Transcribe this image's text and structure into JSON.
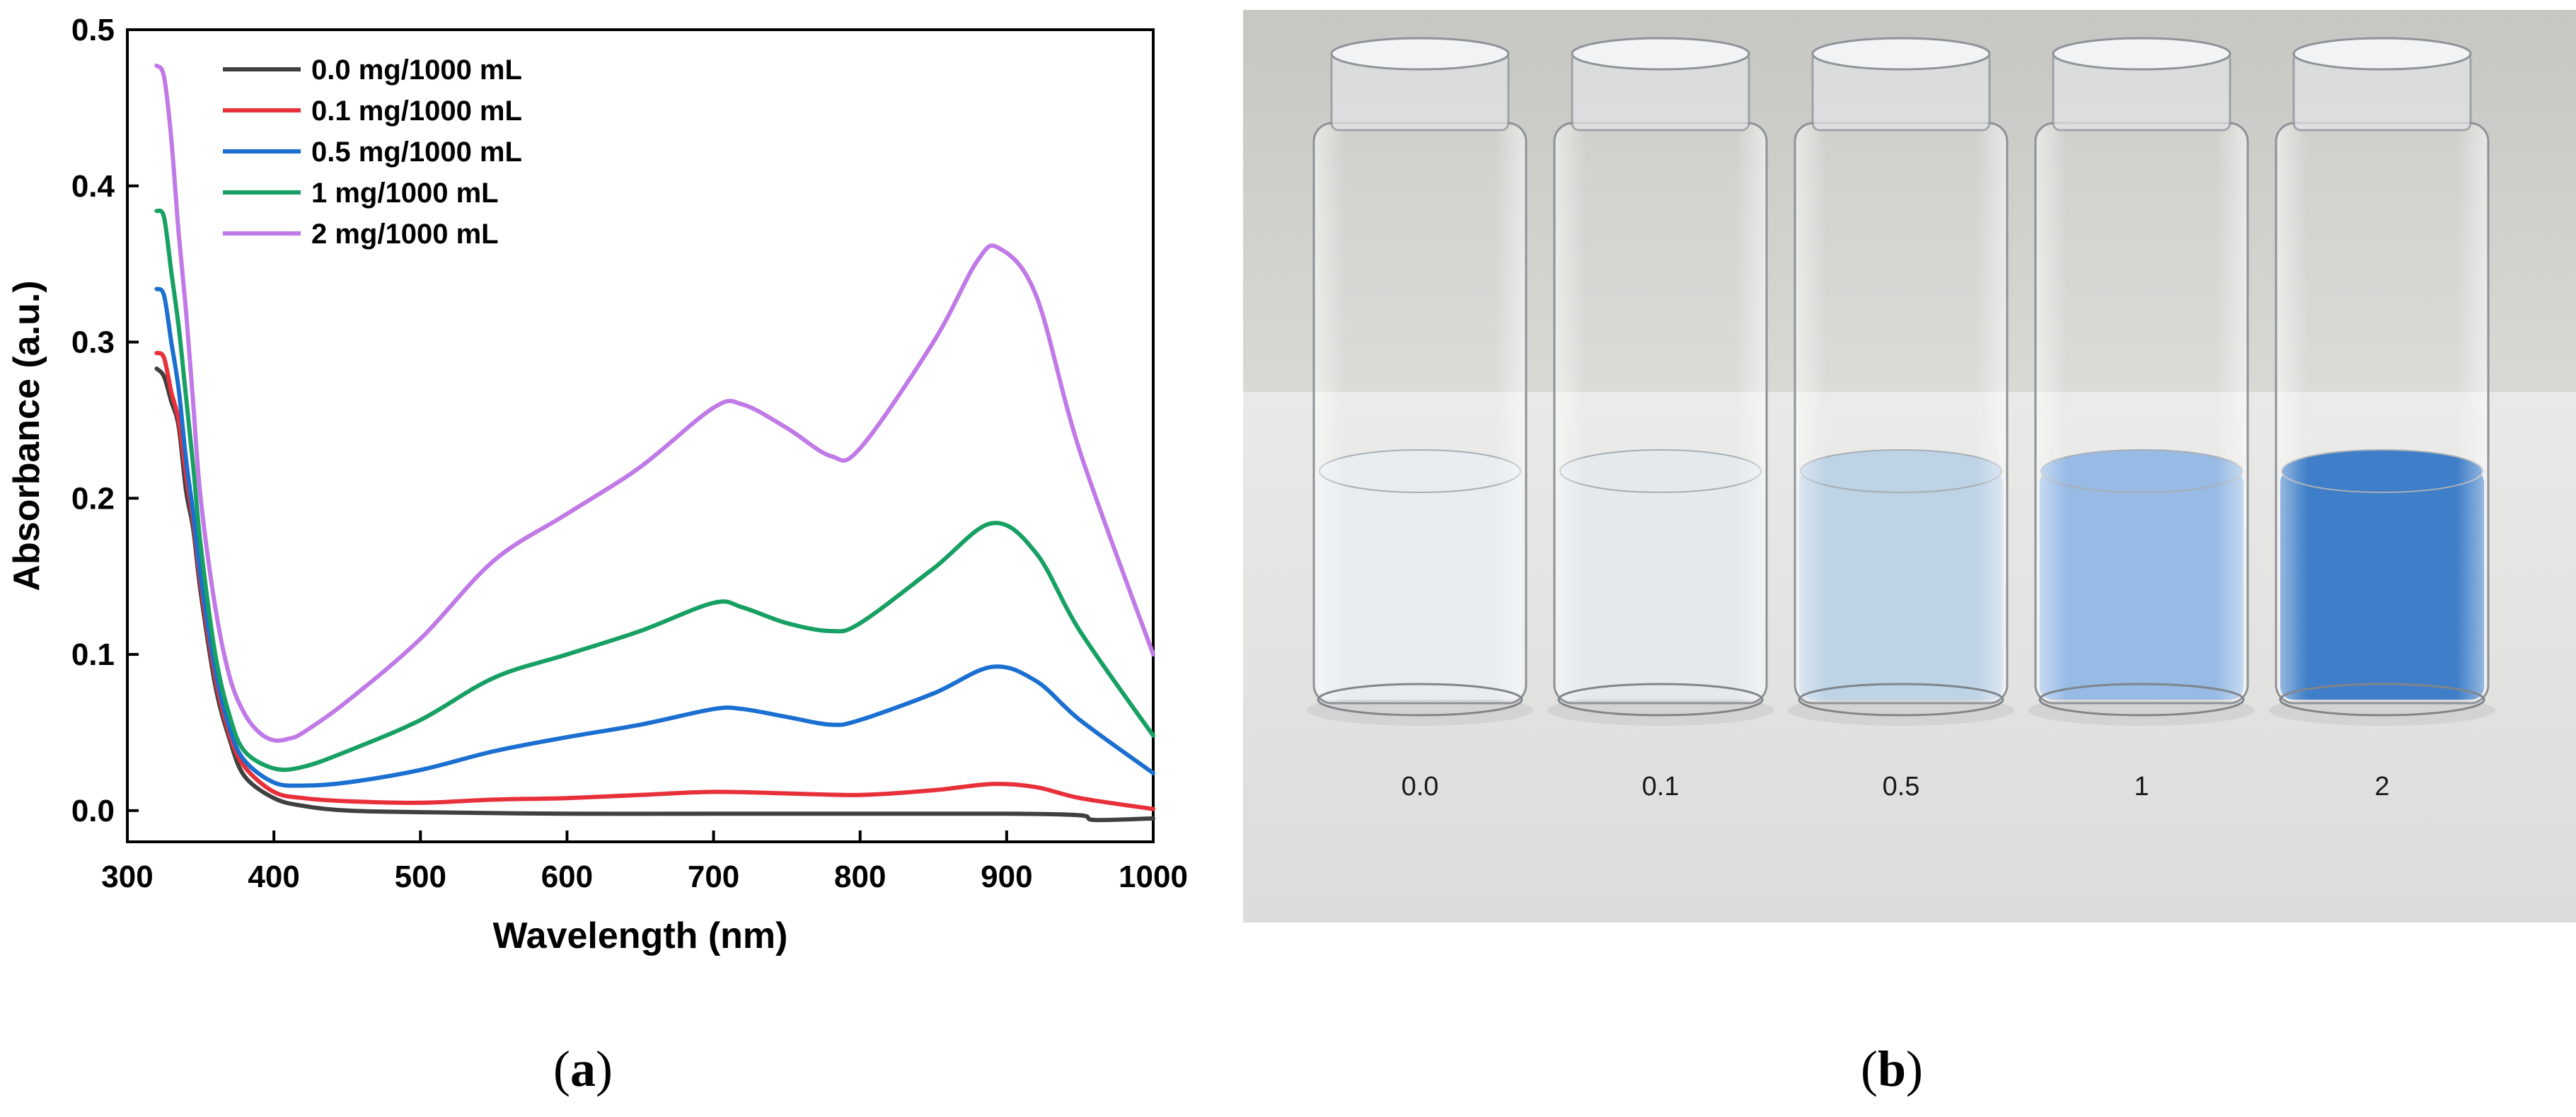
{
  "chart_data": {
    "type": "line",
    "xlabel": "Wavelength (nm)",
    "ylabel": "Absorbance (a.u.)",
    "xlim": [
      300,
      1000
    ],
    "ylim": [
      -0.02,
      0.5
    ],
    "xticks": [
      "300",
      "400",
      "500",
      "600",
      "700",
      "800",
      "900",
      "1000"
    ],
    "yticks": [
      "0.0",
      "0.1",
      "0.2",
      "0.3",
      "0.4",
      "0.5"
    ],
    "grid": false,
    "legend_position": "top-left",
    "series": [
      {
        "name": "0.0 mg/1000 mL",
        "color": "#404040",
        "x": [
          320,
          325,
          330,
          335,
          340,
          345,
          350,
          360,
          370,
          380,
          400,
          420,
          450,
          500,
          600,
          700,
          800,
          900,
          950,
          960,
          1000
        ],
        "y": [
          0.283,
          0.278,
          0.262,
          0.246,
          0.205,
          0.18,
          0.14,
          0.08,
          0.045,
          0.022,
          0.008,
          0.003,
          0.0,
          -0.001,
          -0.002,
          -0.002,
          -0.002,
          -0.002,
          -0.003,
          -0.006,
          -0.005
        ]
      },
      {
        "name": "0.1 mg/1000 mL",
        "color": "#e8303a",
        "x": [
          320,
          325,
          330,
          335,
          340,
          345,
          350,
          360,
          370,
          380,
          400,
          420,
          450,
          500,
          550,
          600,
          650,
          700,
          750,
          800,
          850,
          890,
          920,
          950,
          1000
        ],
        "y": [
          0.293,
          0.29,
          0.268,
          0.25,
          0.215,
          0.185,
          0.145,
          0.085,
          0.048,
          0.028,
          0.012,
          0.008,
          0.006,
          0.005,
          0.007,
          0.008,
          0.01,
          0.012,
          0.011,
          0.01,
          0.013,
          0.017,
          0.015,
          0.008,
          0.001
        ]
      },
      {
        "name": "0.5 mg/1000 mL",
        "color": "#1a6fd0",
        "x": [
          320,
          325,
          330,
          335,
          340,
          345,
          350,
          360,
          370,
          380,
          400,
          420,
          450,
          500,
          550,
          600,
          650,
          700,
          720,
          750,
          780,
          800,
          850,
          890,
          920,
          950,
          1000
        ],
        "y": [
          0.334,
          0.33,
          0.3,
          0.27,
          0.225,
          0.19,
          0.15,
          0.09,
          0.052,
          0.032,
          0.018,
          0.016,
          0.018,
          0.026,
          0.038,
          0.047,
          0.055,
          0.065,
          0.065,
          0.06,
          0.055,
          0.058,
          0.075,
          0.092,
          0.083,
          0.058,
          0.024
        ]
      },
      {
        "name": "1 mg/1000 mL",
        "color": "#17a063",
        "x": [
          320,
          325,
          330,
          335,
          340,
          345,
          350,
          360,
          370,
          380,
          400,
          420,
          450,
          500,
          550,
          600,
          650,
          700,
          720,
          750,
          780,
          800,
          850,
          890,
          920,
          950,
          1000
        ],
        "y": [
          0.384,
          0.38,
          0.345,
          0.31,
          0.265,
          0.22,
          0.17,
          0.1,
          0.06,
          0.038,
          0.027,
          0.028,
          0.038,
          0.058,
          0.085,
          0.1,
          0.115,
          0.133,
          0.13,
          0.12,
          0.115,
          0.12,
          0.155,
          0.184,
          0.165,
          0.115,
          0.048
        ]
      },
      {
        "name": "2 mg/1000 mL",
        "color": "#c079e6",
        "x": [
          320,
          325,
          330,
          335,
          340,
          345,
          350,
          360,
          370,
          380,
          390,
          400,
          410,
          420,
          450,
          500,
          550,
          600,
          650,
          700,
          720,
          750,
          780,
          800,
          850,
          880,
          895,
          920,
          950,
          1000
        ],
        "y": [
          0.477,
          0.47,
          0.43,
          0.37,
          0.32,
          0.26,
          0.2,
          0.13,
          0.085,
          0.062,
          0.05,
          0.045,
          0.046,
          0.05,
          0.07,
          0.11,
          0.16,
          0.19,
          0.22,
          0.258,
          0.26,
          0.245,
          0.227,
          0.232,
          0.3,
          0.352,
          0.36,
          0.33,
          0.23,
          0.1
        ]
      }
    ]
  },
  "photo": {
    "vial_labels": [
      "0.0",
      "0.1",
      "0.5",
      "1",
      "2"
    ],
    "liquid_colors": [
      "#e6ebee",
      "#e2e7ea",
      "#b8cfe3",
      "#8eb5e3",
      "#2e73c3"
    ]
  },
  "captions": {
    "panel_a": "a",
    "panel_b": "b"
  }
}
